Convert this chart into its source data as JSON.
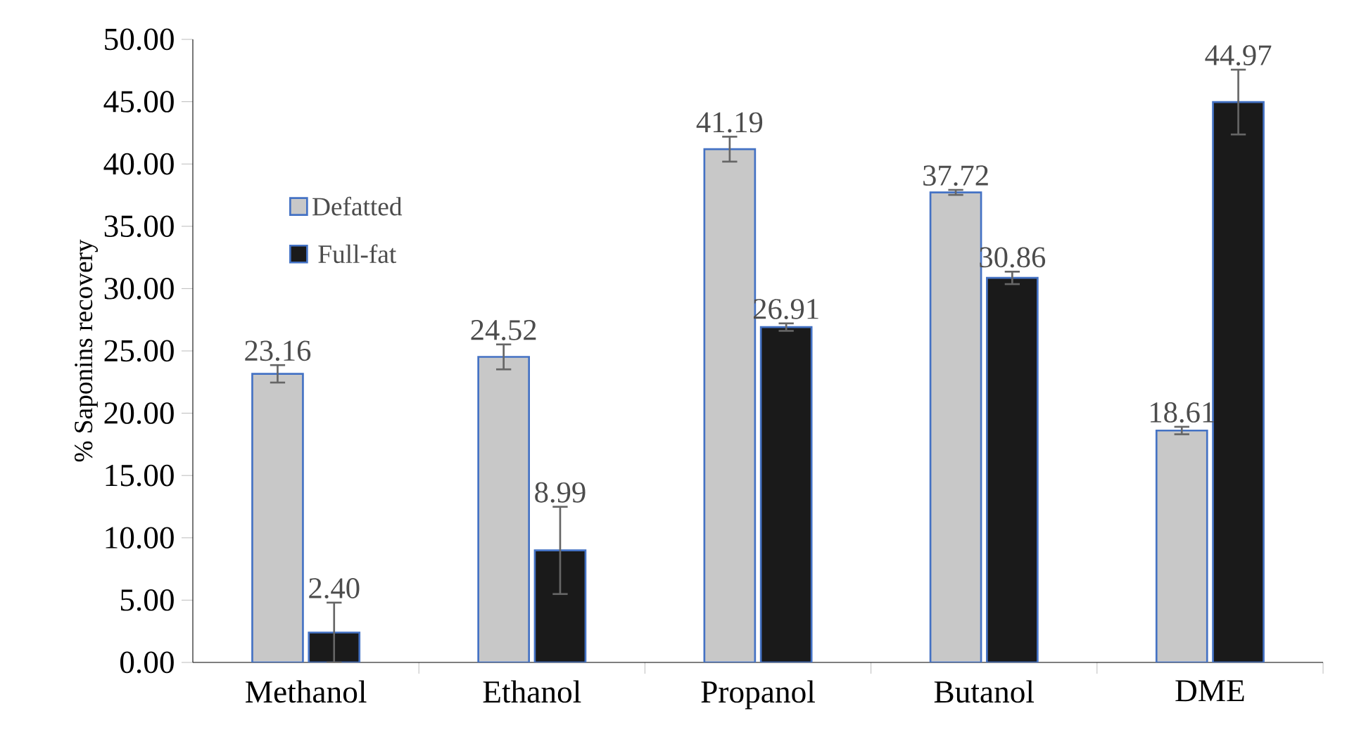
{
  "chart_data": {
    "type": "bar",
    "ylabel": "% Saponins recovery",
    "categories": [
      "Methanol",
      "Ethanol",
      "Propanol",
      "Butanol",
      "DME"
    ],
    "series": [
      {
        "name": "Defatted",
        "color": "#c8c8c8",
        "values": [
          23.16,
          24.52,
          41.19,
          37.72,
          18.61
        ],
        "errors": [
          0.7,
          1.0,
          1.0,
          0.2,
          0.3
        ],
        "value_labels": [
          "23.16",
          "24.52",
          "41.19",
          "37.72",
          "18.61"
        ]
      },
      {
        "name": "Full-fat",
        "color": "#1a1a1a",
        "values": [
          2.4,
          8.99,
          26.91,
          30.86,
          44.97
        ],
        "errors": [
          2.4,
          3.5,
          0.3,
          0.5,
          2.6
        ],
        "value_labels": [
          "2.40",
          "8.99",
          "26.91",
          "30.86",
          "44.97"
        ]
      }
    ],
    "ylim": [
      0,
      50
    ],
    "yticks": [
      {
        "value": 0,
        "label": "0.00"
      },
      {
        "value": 5,
        "label": "5.00"
      },
      {
        "value": 10,
        "label": "10.00"
      },
      {
        "value": 15,
        "label": "15.00"
      },
      {
        "value": 20,
        "label": "20.00"
      },
      {
        "value": 25,
        "label": "25.00"
      },
      {
        "value": 30,
        "label": "30.00"
      },
      {
        "value": 35,
        "label": "35.00"
      },
      {
        "value": 40,
        "label": "40.00"
      },
      {
        "value": 45,
        "label": "45.00"
      },
      {
        "value": 50,
        "label": "50.00"
      }
    ],
    "legend": "left",
    "grid": false
  }
}
